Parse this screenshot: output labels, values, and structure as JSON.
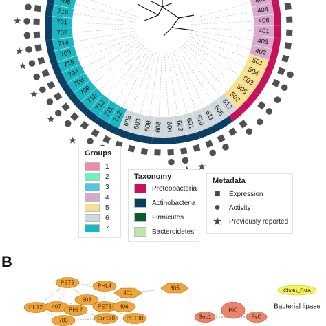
{
  "panel_label": "B",
  "legend_groups": {
    "title": "Groups",
    "items": [
      {
        "label": "1",
        "color": "#f08aa3"
      },
      {
        "label": "2",
        "color": "#6ff2bd"
      },
      {
        "label": "3",
        "color": "#4fc7ea"
      },
      {
        "label": "4",
        "color": "#d9a8cc"
      },
      {
        "label": "5",
        "color": "#f7df8d"
      },
      {
        "label": "6",
        "color": "#cfd8dc"
      },
      {
        "label": "7",
        "color": "#1ab6c2"
      }
    ]
  },
  "legend_taxonomy": {
    "title": "Taxonomy",
    "items": [
      {
        "label": "Proteobacteria",
        "color": "#c8115a"
      },
      {
        "label": "Actinobacteria",
        "color": "#0c3f64"
      },
      {
        "label": "Firmicutes",
        "color": "#0b5b2c"
      },
      {
        "label": "Bacteroidetes",
        "color": "#bfe5b0"
      }
    ]
  },
  "legend_metadata": {
    "title": "Metadata",
    "items": [
      {
        "label": "Expression",
        "icon": "square-icon"
      },
      {
        "label": "Activity",
        "icon": "circle-icon"
      },
      {
        "label": "Previously reported",
        "icon": "star-icon"
      }
    ]
  },
  "tree": {
    "leaves": [
      {
        "id": "705",
        "group": "7",
        "taxon": "Actinobacteria",
        "marks": [
          "square",
          "circle",
          "star"
        ]
      },
      {
        "id": "706",
        "group": "7",
        "taxon": "Actinobacteria",
        "marks": [
          "square",
          "circle",
          "star"
        ]
      },
      {
        "id": "716",
        "group": "7",
        "taxon": "Actinobacteria",
        "marks": [
          "square",
          "circle"
        ]
      },
      {
        "id": "701",
        "group": "7",
        "taxon": "Actinobacteria",
        "marks": [
          "square",
          "circle",
          "star"
        ]
      },
      {
        "id": "702",
        "group": "7",
        "taxon": "Actinobacteria",
        "marks": [
          "square",
          "circle"
        ]
      },
      {
        "id": "714",
        "group": "7",
        "taxon": "Actinobacteria",
        "marks": [
          "square",
          "circle",
          "star"
        ]
      },
      {
        "id": "703",
        "group": "7",
        "taxon": "Actinobacteria",
        "marks": [
          "square",
          "circle",
          "star"
        ]
      },
      {
        "id": "715",
        "group": "7",
        "taxon": "Actinobacteria",
        "marks": [
          "square",
          "circle"
        ]
      },
      {
        "id": "704",
        "group": "7",
        "taxon": "Actinobacteria",
        "marks": [
          "square",
          "circle",
          "star"
        ]
      },
      {
        "id": "708",
        "group": "7",
        "taxon": "Actinobacteria",
        "marks": [
          "square",
          "circle"
        ]
      },
      {
        "id": "709",
        "group": "7",
        "taxon": "Actinobacteria",
        "marks": [
          "square",
          "circle",
          "star"
        ]
      },
      {
        "id": "710",
        "group": "7",
        "taxon": "Actinobacteria",
        "marks": [
          "square",
          "circle"
        ]
      },
      {
        "id": "713",
        "group": "7",
        "taxon": "Actinobacteria",
        "marks": [
          "square",
          "star"
        ]
      },
      {
        "id": "711",
        "group": "7",
        "taxon": "Actinobacteria",
        "marks": [
          "square",
          "circle"
        ]
      },
      {
        "id": "712",
        "group": "7",
        "taxon": "Actinobacteria",
        "marks": [
          "square",
          "circle",
          "star"
        ]
      },
      {
        "id": "605",
        "group": "6",
        "taxon": "Actinobacteria",
        "marks": [
          "square"
        ]
      },
      {
        "id": "603",
        "group": "6",
        "taxon": "Actinobacteria",
        "marks": [
          "square"
        ]
      },
      {
        "id": "609",
        "group": "6",
        "taxon": "Actinobacteria",
        "marks": [
          "square"
        ]
      },
      {
        "id": "608",
        "group": "6",
        "taxon": "Actinobacteria",
        "marks": [
          "square",
          "star"
        ]
      },
      {
        "id": "604",
        "group": "6",
        "taxon": "Actinobacteria",
        "marks": [
          "square",
          "circle"
        ]
      },
      {
        "id": "602",
        "group": "6",
        "taxon": "Actinobacteria",
        "marks": [
          "square",
          "circle",
          "star"
        ]
      },
      {
        "id": "601",
        "group": "6",
        "taxon": "Actinobacteria",
        "marks": [
          "square",
          "star"
        ]
      },
      {
        "id": "610",
        "group": "6",
        "taxon": "Actinobacteria",
        "marks": [
          "square",
          "circle"
        ]
      },
      {
        "id": "611",
        "group": "6",
        "taxon": "Actinobacteria",
        "marks": [
          "square",
          "circle"
        ]
      },
      {
        "id": "606",
        "group": "6",
        "taxon": "Actinobacteria",
        "marks": [
          "square"
        ]
      },
      {
        "id": "612",
        "group": "6",
        "taxon": "Proteobacteria",
        "marks": [
          "square",
          "circle"
        ]
      },
      {
        "id": "502",
        "group": "5",
        "taxon": "Proteobacteria",
        "marks": [
          "circle"
        ]
      },
      {
        "id": "505",
        "group": "5",
        "taxon": "Proteobacteria",
        "marks": [
          "square",
          "circle"
        ]
      },
      {
        "id": "503",
        "group": "5",
        "taxon": "Proteobacteria",
        "marks": [
          "circle"
        ]
      },
      {
        "id": "504",
        "group": "5",
        "taxon": "Proteobacteria",
        "marks": [
          "square",
          "circle"
        ]
      },
      {
        "id": "501",
        "group": "5",
        "taxon": "Proteobacteria",
        "marks": [
          "square",
          "circle"
        ]
      },
      {
        "id": "402",
        "group": "4",
        "taxon": "Proteobacteria",
        "marks": [
          "square"
        ]
      },
      {
        "id": "403",
        "group": "4",
        "taxon": "Proteobacteria",
        "marks": [
          "square"
        ]
      },
      {
        "id": "401",
        "group": "4",
        "taxon": "Proteobacteria",
        "marks": [
          "square"
        ]
      },
      {
        "id": "406",
        "group": "4",
        "taxon": "Proteobacteria",
        "marks": [
          "square"
        ]
      },
      {
        "id": "404",
        "group": "4",
        "taxon": "Proteobacteria",
        "marks": [
          "square"
        ]
      },
      {
        "id": "405",
        "group": "4",
        "taxon": "Proteobacteria",
        "marks": [
          "square"
        ]
      }
    ]
  },
  "network": {
    "nodes": [
      "PET5",
      "PHL4",
      "401",
      "305",
      "PET2",
      "407",
      "503",
      "PHL2",
      "PET6",
      "703",
      "Cut190",
      "PET30",
      "406"
    ],
    "hic_cluster": [
      "HiC",
      "Sub1",
      "FsC"
    ],
    "lipase_node": "Cbotu_EstA",
    "lipase_label": "Bacterial lipase"
  }
}
